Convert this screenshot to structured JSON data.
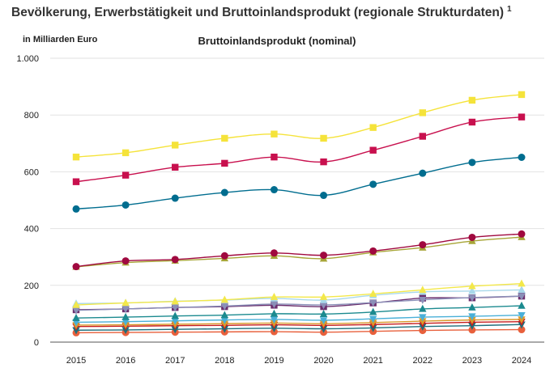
{
  "header": {
    "title": "Bevölkerung, Erwerbstätigkeit und Bruttoinlandsprodukt (regionale Strukturdaten)",
    "footnote_marker": "1"
  },
  "chart_data": {
    "type": "line",
    "title": "Bruttoinlandsprodukt (nominal)",
    "unit_label": "in Milliarden Euro",
    "xlabel": "",
    "ylabel": "in Milliarden Euro",
    "ylim": [
      0,
      1000
    ],
    "y_ticks": [
      0,
      200,
      400,
      600,
      800,
      1000
    ],
    "y_tick_labels": [
      "0",
      "200",
      "400",
      "600",
      "800",
      "1.000"
    ],
    "categories": [
      "2015",
      "2016",
      "2017",
      "2018",
      "2019",
      "2020",
      "2021",
      "2022",
      "2023",
      "2024"
    ],
    "grid": true,
    "series": [
      {
        "color": "#f5e33a",
        "marker": "square",
        "values": [
          652,
          667,
          694,
          718,
          733,
          718,
          756,
          808,
          852,
          872
        ]
      },
      {
        "color": "#c8104e",
        "marker": "square",
        "values": [
          565,
          588,
          616,
          630,
          652,
          635,
          676,
          725,
          775,
          793
        ]
      },
      {
        "color": "#006d8f",
        "marker": "circle",
        "values": [
          469,
          483,
          507,
          527,
          537,
          517,
          556,
          595,
          633,
          651
        ]
      },
      {
        "color": "#a0093f",
        "marker": "circle",
        "values": [
          266,
          286,
          291,
          304,
          314,
          306,
          321,
          343,
          369,
          381
        ]
      },
      {
        "color": "#a7a537",
        "marker": "triangle-up",
        "values": [
          265,
          280,
          287,
          295,
          304,
          294,
          316,
          333,
          356,
          370
        ]
      },
      {
        "color": "#f3e84a",
        "marker": "triangle-up",
        "values": [
          131,
          138,
          143,
          149,
          159,
          159,
          170,
          184,
          197,
          206
        ]
      },
      {
        "color": "#a8d8ea",
        "marker": "triangle-up",
        "values": [
          136,
          138,
          144,
          148,
          154,
          148,
          165,
          177,
          180,
          184
        ]
      },
      {
        "color": "#8a8fb8",
        "marker": "triangle-down",
        "values": [
          112,
          117,
          122,
          127,
          134,
          131,
          139,
          149,
          157,
          162
        ]
      },
      {
        "color": "#6b2f6e",
        "marker": "square",
        "values": [
          114,
          117,
          122,
          125,
          130,
          125,
          138,
          155,
          156,
          162
        ]
      },
      {
        "color": "#1b8a8f",
        "marker": "triangle-up",
        "values": [
          85,
          88,
          92,
          95,
          100,
          99,
          106,
          117,
          122,
          128
        ]
      },
      {
        "color": "#4ab0d8",
        "marker": "triangle-down",
        "values": [
          70,
          72,
          75,
          78,
          80,
          77,
          82,
          88,
          91,
          95
        ]
      },
      {
        "color": "#d99a2b",
        "marker": "triangle-down",
        "values": [
          60,
          61,
          63,
          65,
          67,
          65,
          69,
          74,
          78,
          80
        ]
      },
      {
        "color": "#c81d1d",
        "marker": "triangle-down",
        "values": [
          55,
          56,
          58,
          59,
          61,
          59,
          62,
          66,
          70,
          72
        ]
      },
      {
        "color": "#1e6e7a",
        "marker": "triangle-down",
        "values": [
          42,
          43,
          45,
          47,
          49,
          47,
          50,
          55,
          58,
          62
        ]
      },
      {
        "color": "#e8603c",
        "marker": "circle",
        "values": [
          33,
          34,
          35,
          36,
          37,
          35,
          38,
          41,
          43,
          44
        ]
      }
    ]
  }
}
